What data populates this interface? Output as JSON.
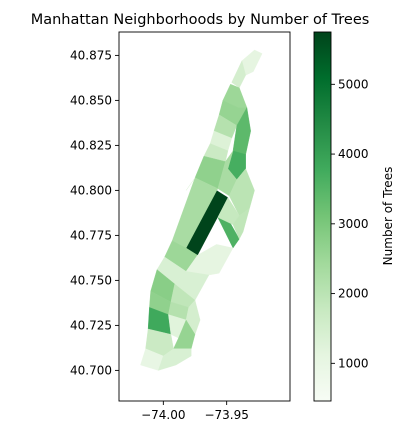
{
  "chart_data": {
    "type": "choropleth",
    "title": "Manhattan Neighborhoods by Number of Trees",
    "xlabel": "",
    "ylabel": "",
    "xlim": [
      -74.035,
      -73.9
    ],
    "ylim": [
      40.683,
      40.888
    ],
    "xticks": [
      {
        "value": -74.0,
        "label": "−74.00"
      },
      {
        "value": -73.95,
        "label": "−73.95"
      }
    ],
    "yticks": [
      {
        "value": 40.875,
        "label": "40.875"
      },
      {
        "value": 40.85,
        "label": "40.850"
      },
      {
        "value": 40.825,
        "label": "40.825"
      },
      {
        "value": 40.8,
        "label": "40.800"
      },
      {
        "value": 40.775,
        "label": "40.775"
      },
      {
        "value": 40.75,
        "label": "40.750"
      },
      {
        "value": 40.725,
        "label": "40.725"
      },
      {
        "value": 40.7,
        "label": "40.700"
      }
    ],
    "colorbar": {
      "label": "Number of Trees",
      "colormap": "Greens",
      "range": [
        460,
        5750
      ],
      "ticks": [
        1000,
        2000,
        3000,
        4000,
        5000
      ],
      "tick_labels": [
        "1000",
        "2000",
        "3000",
        "4000",
        "5000"
      ]
    },
    "regions": [
      {
        "value": 1100,
        "polygon": [
          [
            -73.938,
            40.872
          ],
          [
            -73.928,
            40.878
          ],
          [
            -73.922,
            40.876
          ],
          [
            -73.929,
            40.866
          ],
          [
            -73.935,
            40.864
          ]
        ]
      },
      {
        "value": 1500,
        "polygon": [
          [
            -73.946,
            40.86
          ],
          [
            -73.938,
            40.872
          ],
          [
            -73.935,
            40.864
          ],
          [
            -73.94,
            40.857
          ]
        ]
      },
      {
        "value": 2500,
        "polygon": [
          [
            -73.947,
            40.859
          ],
          [
            -73.94,
            40.857
          ],
          [
            -73.934,
            40.846
          ],
          [
            -73.941,
            40.846
          ],
          [
            -73.953,
            40.85
          ]
        ]
      },
      {
        "value": 2600,
        "polygon": [
          [
            -73.953,
            40.85
          ],
          [
            -73.941,
            40.846
          ],
          [
            -73.934,
            40.846
          ],
          [
            -73.942,
            40.836
          ],
          [
            -73.956,
            40.842
          ]
        ]
      },
      {
        "value": 2100,
        "polygon": [
          [
            -73.956,
            40.842
          ],
          [
            -73.942,
            40.836
          ],
          [
            -73.946,
            40.829
          ],
          [
            -73.96,
            40.833
          ]
        ]
      },
      {
        "value": 3400,
        "polygon": [
          [
            -73.942,
            40.836
          ],
          [
            -73.934,
            40.846
          ],
          [
            -73.931,
            40.833
          ],
          [
            -73.935,
            40.82
          ],
          [
            -73.945,
            40.822
          ]
        ]
      },
      {
        "value": 1300,
        "polygon": [
          [
            -73.96,
            40.833
          ],
          [
            -73.946,
            40.829
          ],
          [
            -73.949,
            40.822
          ],
          [
            -73.963,
            40.826
          ]
        ]
      },
      {
        "value": 1700,
        "polygon": [
          [
            -73.963,
            40.826
          ],
          [
            -73.949,
            40.822
          ],
          [
            -73.951,
            40.816
          ],
          [
            -73.968,
            40.819
          ]
        ]
      },
      {
        "value": 3700,
        "polygon": [
          [
            -73.945,
            40.822
          ],
          [
            -73.935,
            40.82
          ],
          [
            -73.935,
            40.812
          ],
          [
            -73.942,
            40.806
          ],
          [
            -73.949,
            40.812
          ]
        ]
      },
      {
        "value": 2700,
        "polygon": [
          [
            -73.968,
            40.819
          ],
          [
            -73.951,
            40.816
          ],
          [
            -73.957,
            40.801
          ],
          [
            -73.975,
            40.807
          ]
        ]
      },
      {
        "value": 2300,
        "polygon": [
          [
            -73.951,
            40.816
          ],
          [
            -73.945,
            40.822
          ],
          [
            -73.949,
            40.812
          ],
          [
            -73.942,
            40.806
          ],
          [
            -73.948,
            40.797
          ],
          [
            -73.957,
            40.801
          ]
        ]
      },
      {
        "value": 2000,
        "polygon": [
          [
            -73.942,
            40.806
          ],
          [
            -73.935,
            40.812
          ],
          [
            -73.928,
            40.8
          ],
          [
            -73.932,
            40.79
          ],
          [
            -73.94,
            40.786
          ],
          [
            -73.948,
            40.797
          ]
        ]
      },
      {
        "value": 5750,
        "polygon": [
          [
            -73.982,
            40.768
          ],
          [
            -73.958,
            40.8
          ],
          [
            -73.949,
            40.796
          ],
          [
            -73.973,
            40.764
          ]
        ]
      },
      {
        "value": 2300,
        "polygon": [
          [
            -73.975,
            40.807
          ],
          [
            -73.957,
            40.801
          ],
          [
            -73.982,
            40.768
          ],
          [
            -73.993,
            40.772
          ]
        ]
      },
      {
        "value": 3600,
        "polygon": [
          [
            -73.957,
            40.785
          ],
          [
            -73.952,
            40.788
          ],
          [
            -73.94,
            40.773
          ],
          [
            -73.945,
            40.768
          ]
        ]
      },
      {
        "value": 1800,
        "polygon": [
          [
            -73.949,
            40.796
          ],
          [
            -73.94,
            40.786
          ],
          [
            -73.945,
            40.781
          ],
          [
            -73.957,
            40.785
          ]
        ]
      },
      {
        "value": 1900,
        "polygon": [
          [
            -73.945,
            40.781
          ],
          [
            -73.94,
            40.786
          ],
          [
            -73.932,
            40.79
          ],
          [
            -73.937,
            40.777
          ],
          [
            -73.94,
            40.773
          ]
        ]
      },
      {
        "value": 2500,
        "polygon": [
          [
            -73.993,
            40.772
          ],
          [
            -73.982,
            40.768
          ],
          [
            -73.973,
            40.764
          ],
          [
            -73.982,
            40.755
          ],
          [
            -73.999,
            40.763
          ]
        ]
      },
      {
        "value": 1100,
        "polygon": [
          [
            -73.973,
            40.764
          ],
          [
            -73.958,
            40.77
          ],
          [
            -73.945,
            40.768
          ],
          [
            -73.956,
            40.754
          ],
          [
            -73.964,
            40.753
          ],
          [
            -73.982,
            40.755
          ]
        ]
      },
      {
        "value": 1400,
        "polygon": [
          [
            -73.999,
            40.763
          ],
          [
            -73.982,
            40.755
          ],
          [
            -73.991,
            40.748
          ],
          [
            -74.005,
            40.756
          ]
        ]
      },
      {
        "value": 1400,
        "polygon": [
          [
            -73.982,
            40.755
          ],
          [
            -73.964,
            40.753
          ],
          [
            -73.975,
            40.739
          ],
          [
            -73.991,
            40.748
          ]
        ]
      },
      {
        "value": 2800,
        "polygon": [
          [
            -74.005,
            40.756
          ],
          [
            -73.991,
            40.748
          ],
          [
            -73.994,
            40.738
          ],
          [
            -74.01,
            40.744
          ]
        ]
      },
      {
        "value": 1900,
        "polygon": [
          [
            -73.991,
            40.748
          ],
          [
            -73.975,
            40.739
          ],
          [
            -73.98,
            40.735
          ],
          [
            -73.994,
            40.738
          ]
        ]
      },
      {
        "value": 2700,
        "polygon": [
          [
            -74.01,
            40.744
          ],
          [
            -73.994,
            40.738
          ],
          [
            -73.996,
            40.731
          ],
          [
            -74.011,
            40.735
          ]
        ]
      },
      {
        "value": 2100,
        "polygon": [
          [
            -73.994,
            40.738
          ],
          [
            -73.98,
            40.735
          ],
          [
            -73.982,
            40.728
          ],
          [
            -73.996,
            40.731
          ]
        ]
      },
      {
        "value": 1500,
        "polygon": [
          [
            -73.98,
            40.735
          ],
          [
            -73.975,
            40.739
          ],
          [
            -73.971,
            40.728
          ],
          [
            -73.975,
            40.72
          ],
          [
            -73.982,
            40.728
          ]
        ]
      },
      {
        "value": 3800,
        "polygon": [
          [
            -74.011,
            40.735
          ],
          [
            -73.996,
            40.731
          ],
          [
            -73.994,
            40.72
          ],
          [
            -74.012,
            40.723
          ]
        ]
      },
      {
        "value": 1200,
        "polygon": [
          [
            -73.996,
            40.731
          ],
          [
            -73.982,
            40.728
          ],
          [
            -73.988,
            40.718
          ],
          [
            -73.994,
            40.72
          ]
        ]
      },
      {
        "value": 2600,
        "polygon": [
          [
            -73.982,
            40.728
          ],
          [
            -73.975,
            40.72
          ],
          [
            -73.978,
            40.712
          ],
          [
            -73.992,
            40.712
          ],
          [
            -73.988,
            40.718
          ]
        ]
      },
      {
        "value": 1700,
        "polygon": [
          [
            -74.012,
            40.723
          ],
          [
            -73.994,
            40.72
          ],
          [
            -73.992,
            40.712
          ],
          [
            -74.0,
            40.708
          ],
          [
            -74.014,
            40.712
          ]
        ]
      },
      {
        "value": 1000,
        "polygon": [
          [
            -74.014,
            40.712
          ],
          [
            -74.0,
            40.708
          ],
          [
            -74.004,
            40.7
          ],
          [
            -74.018,
            40.703
          ]
        ]
      },
      {
        "value": 1400,
        "polygon": [
          [
            -74.0,
            40.708
          ],
          [
            -73.992,
            40.712
          ],
          [
            -73.978,
            40.712
          ],
          [
            -73.978,
            40.708
          ],
          [
            -73.99,
            40.703
          ],
          [
            -74.004,
            40.7
          ]
        ]
      },
      {
        "value": 1300,
        "polygon": [
          [
            -73.982,
            40.8
          ],
          [
            -73.975,
            40.807
          ],
          [
            -73.979,
            40.803
          ]
        ]
      }
    ]
  }
}
